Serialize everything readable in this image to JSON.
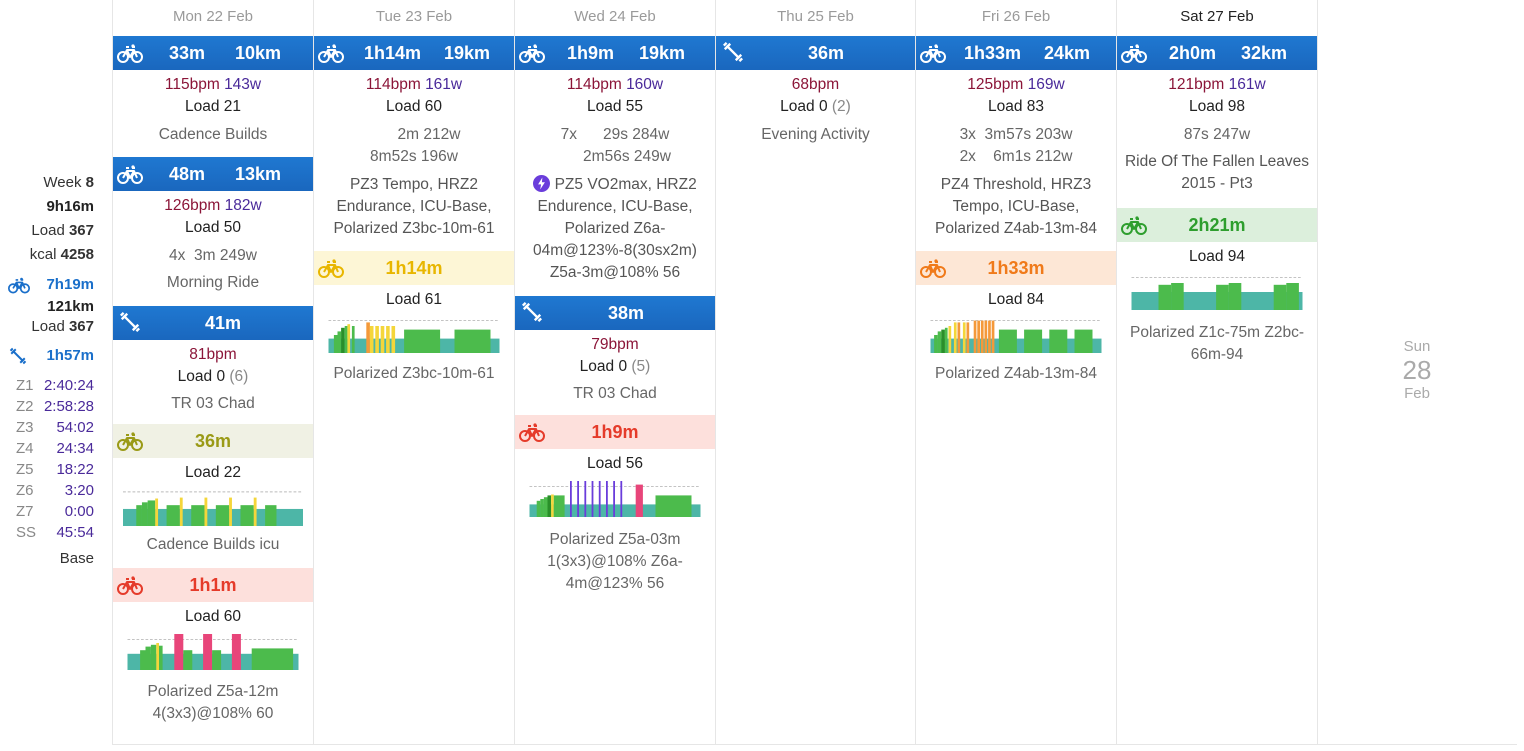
{
  "summary": {
    "week_label": "Week",
    "week_num": "8",
    "total_time": "9h16m",
    "load_label": "Load",
    "load": "367",
    "kcal_label": "kcal",
    "kcal": "4258",
    "ride_time": "7h19m",
    "ride_dist": "121km",
    "ride_load_label": "Load",
    "ride_load": "367",
    "weight_time": "1h57m",
    "zones": [
      {
        "z": "Z1",
        "v": "2:40:24"
      },
      {
        "z": "Z2",
        "v": "2:58:28"
      },
      {
        "z": "Z3",
        "v": "54:02"
      },
      {
        "z": "Z4",
        "v": "24:34"
      },
      {
        "z": "Z5",
        "v": "18:22"
      },
      {
        "z": "Z6",
        "v": "3:20"
      },
      {
        "z": "Z7",
        "v": "0:00"
      },
      {
        "z": "SS",
        "v": "45:54"
      }
    ],
    "phase": "Base"
  },
  "days": {
    "mon": {
      "label": "Mon 22 Feb",
      "a1": {
        "time": "33m",
        "dist": "10km",
        "hr": "115bpm",
        "pw": "143w",
        "load": "Load 21",
        "name": "Cadence Builds"
      },
      "a2": {
        "time": "48m",
        "dist": "13km",
        "hr": "126bpm",
        "pw": "182w",
        "load": "Load 50",
        "interval": "4x  3m 249w",
        "name": "Morning Ride"
      },
      "a3": {
        "time": "41m",
        "hr": "81bpm",
        "load": "Load 0",
        "load_extra": "(6)",
        "name": "TR 03 Chad"
      },
      "p1": {
        "time": "36m",
        "load": "Load 22",
        "name": "Cadence Builds icu"
      },
      "p2": {
        "time": "1h1m",
        "load": "Load 60",
        "desc1": "Polarized Z5a-12m",
        "desc2": "4(3x3)@108% 60"
      }
    },
    "tue": {
      "label": "Tue 23 Feb",
      "a1": {
        "time": "1h14m",
        "dist": "19km",
        "hr": "114bpm",
        "pw": "161w",
        "load": "Load 60",
        "i1": "2m 212w",
        "i2": "8m52s 196w",
        "d1": "PZ3 Tempo, HRZ2",
        "d2": "Endurance, ICU-Base,",
        "d3": "Polarized Z3bc-10m-61"
      },
      "p1": {
        "time": "1h14m",
        "load": "Load 61",
        "name": "Polarized Z3bc-10m-61"
      }
    },
    "wed": {
      "label": "Wed 24 Feb",
      "a1": {
        "time": "1h9m",
        "dist": "19km",
        "hr": "114bpm",
        "pw": "160w",
        "load": "Load 55",
        "i1a": "7x",
        "i1b": "29s 284w",
        "i2": "2m56s 249w",
        "d1": "PZ5 VO2max, HRZ2",
        "d2": "Endurence, ICU-Base,",
        "d3": "Polarized Z6a-",
        "d4": "04m@123%-8(30sx2m)",
        "d5": "Z5a-3m@108% 56"
      },
      "a2": {
        "time": "38m",
        "hr": "79bpm",
        "load": "Load 0",
        "load_extra": "(5)",
        "name": "TR 03 Chad"
      },
      "p1": {
        "time": "1h9m",
        "load": "Load 56",
        "d1": "Polarized Z5a-03m",
        "d2": "1(3x3)@108% Z6a-",
        "d3": "4m@123% 56"
      }
    },
    "thu": {
      "label": "Thu 25 Feb",
      "a1": {
        "time": "36m",
        "hr": "68bpm",
        "load": "Load 0",
        "load_extra": "(2)",
        "name": "Evening Activity"
      }
    },
    "fri": {
      "label": "Fri 26 Feb",
      "a1": {
        "time": "1h33m",
        "dist": "24km",
        "hr": "125bpm",
        "pw": "169w",
        "load": "Load 83",
        "i1": "3x  3m57s 203w",
        "i2": "2x    6m1s 212w",
        "d1": "PZ4 Threshold, HRZ3",
        "d2": "Tempo, ICU-Base,",
        "d3": "Polarized Z4ab-13m-84"
      },
      "p1": {
        "time": "1h33m",
        "load": "Load 84",
        "name": "Polarized Z4ab-13m-84"
      }
    },
    "sat": {
      "label": "Sat 27 Feb",
      "a1": {
        "time": "2h0m",
        "dist": "32km",
        "hr": "121bpm",
        "pw": "161w",
        "load": "Load 98",
        "i1": "87s 247w",
        "d1": "Ride Of The Fallen Leaves",
        "d2": "2015 - Pt3"
      },
      "p1": {
        "time": "2h21m",
        "load": "Load 94",
        "d1": "Polarized Z1c-75m Z2bc-",
        "d2": "66m-94"
      }
    },
    "sun": {
      "dow": "Sun",
      "num": "28",
      "mon": "Feb"
    }
  },
  "colors": {
    "activity_blue": "#1a6fca",
    "planned_yellow": "#fdf6d6",
    "planned_red": "#fde0dc",
    "planned_olive": "#f0f1e4",
    "planned_orange": "#fde7d6",
    "planned_green": "#dcefdc"
  }
}
